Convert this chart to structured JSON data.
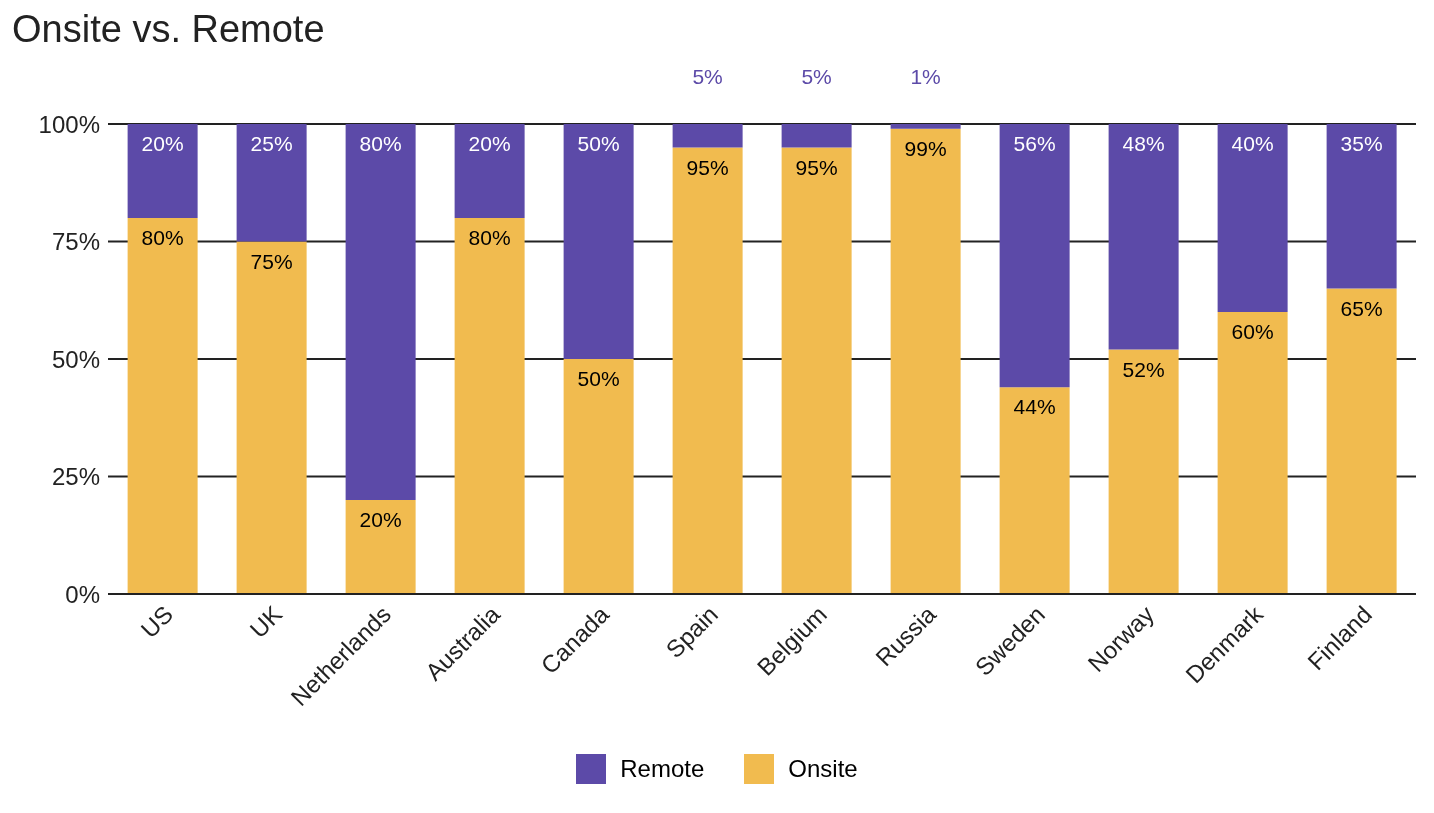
{
  "chart_data": {
    "type": "bar",
    "title": "Onsite vs. Remote",
    "stacked": true,
    "categories": [
      "US",
      "UK",
      "Netherlands",
      "Australia",
      "Canada",
      "Spain",
      "Belgium",
      "Russia",
      "Sweden",
      "Norway",
      "Denmark",
      "Finland"
    ],
    "series": [
      {
        "name": "Onsite",
        "color": "#f1bb4f",
        "values": [
          80,
          75,
          20,
          80,
          50,
          95,
          95,
          99,
          44,
          52,
          60,
          65
        ],
        "value_labels": [
          "80%",
          "75%",
          "20%",
          "80%",
          "50%",
          "95%",
          "95%",
          "99%",
          "44%",
          "52%",
          "60%",
          "65%"
        ]
      },
      {
        "name": "Remote",
        "color": "#5c4aa8",
        "values": [
          20,
          25,
          80,
          20,
          50,
          5,
          5,
          1,
          56,
          48,
          40,
          35
        ],
        "value_labels": [
          "20%",
          "25%",
          "80%",
          "20%",
          "50%",
          "5%",
          "5%",
          "1%",
          "56%",
          "48%",
          "40%",
          "35%"
        ]
      }
    ],
    "ylim": [
      0,
      100
    ],
    "yticks": [
      {
        "value": 0,
        "label": "0%"
      },
      {
        "value": 25,
        "label": "25%"
      },
      {
        "value": 50,
        "label": "50%"
      },
      {
        "value": 75,
        "label": "75%"
      },
      {
        "value": 100,
        "label": "100%"
      }
    ],
    "grid": "y",
    "legend": "bottom"
  }
}
